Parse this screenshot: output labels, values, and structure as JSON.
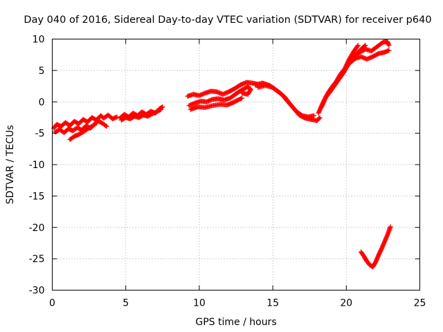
{
  "chart_data": {
    "type": "scatter",
    "title": "Day 040 of 2016, Sidereal Day-to-day VTEC variation (SDTVAR) for receiver p640",
    "xlabel": "GPS time / hours",
    "ylabel": "SDTVAR / TECUs",
    "xlim": [
      0,
      25
    ],
    "ylim": [
      -30,
      10
    ],
    "xticks": [
      0,
      5,
      10,
      15,
      20,
      25
    ],
    "yticks": [
      -30,
      -25,
      -20,
      -15,
      -10,
      -5,
      0,
      5,
      10
    ],
    "grid": true,
    "legend": "none",
    "marker": "plus",
    "color": "#ff0000",
    "series": [
      {
        "name": "sdtvar-p640",
        "segments": [
          [
            [
              0.1,
              -4.2
            ],
            [
              0.3,
              -3.6
            ],
            [
              0.6,
              -3.9
            ],
            [
              0.9,
              -3.3
            ],
            [
              1.2,
              -3.8
            ],
            [
              1.5,
              -3.1
            ],
            [
              1.8,
              -3.5
            ],
            [
              2.1,
              -2.8
            ],
            [
              2.4,
              -3.2
            ],
            [
              2.7,
              -2.5
            ],
            [
              3.0,
              -2.9
            ],
            [
              3.3,
              -2.2
            ],
            [
              3.5,
              -2.6
            ],
            [
              3.8,
              -2.1
            ],
            [
              4.1,
              -2.7
            ],
            [
              4.4,
              -2.4
            ]
          ],
          [
            [
              0.2,
              -4.8
            ],
            [
              0.5,
              -4.4
            ],
            [
              0.8,
              -4.9
            ],
            [
              1.1,
              -4.3
            ],
            [
              1.4,
              -4.6
            ],
            [
              1.7,
              -4.1
            ],
            [
              2.0,
              -4.5
            ],
            [
              2.3,
              -3.8
            ],
            [
              2.6,
              -4.2
            ],
            [
              2.9,
              -3.5
            ],
            [
              3.1,
              -3.0
            ],
            [
              3.4,
              -3.4
            ],
            [
              3.7,
              -3.9
            ]
          ],
          [
            [
              1.2,
              -6.0
            ],
            [
              1.5,
              -5.5
            ],
            [
              1.8,
              -5.2
            ],
            [
              2.1,
              -4.8
            ],
            [
              2.4,
              -4.3
            ],
            [
              2.7,
              -3.9
            ],
            [
              3.0,
              -3.4
            ]
          ],
          [
            [
              4.6,
              -2.6
            ],
            [
              4.9,
              -2.0
            ],
            [
              5.2,
              -2.4
            ],
            [
              5.5,
              -1.8
            ],
            [
              5.8,
              -2.2
            ],
            [
              6.1,
              -1.6
            ],
            [
              6.4,
              -2.0
            ],
            [
              6.7,
              -1.5
            ],
            [
              7.0,
              -1.8
            ],
            [
              7.3,
              -1.1
            ],
            [
              7.5,
              -0.8
            ]
          ],
          [
            [
              4.7,
              -2.9
            ],
            [
              5.0,
              -2.5
            ],
            [
              5.3,
              -2.7
            ],
            [
              5.6,
              -2.3
            ],
            [
              5.9,
              -2.5
            ],
            [
              6.2,
              -2.1
            ],
            [
              6.5,
              -2.3
            ],
            [
              6.8,
              -1.9
            ],
            [
              7.1,
              -1.6
            ],
            [
              7.4,
              -1.2
            ]
          ],
          [
            [
              9.2,
              0.9
            ],
            [
              9.6,
              1.2
            ],
            [
              10.0,
              1.0
            ],
            [
              10.4,
              1.4
            ],
            [
              10.8,
              1.7
            ],
            [
              11.2,
              1.6
            ],
            [
              11.6,
              1.2
            ],
            [
              12.0,
              1.6
            ],
            [
              12.4,
              2.1
            ],
            [
              12.8,
              2.7
            ],
            [
              13.2,
              3.1
            ],
            [
              13.6,
              3.0
            ],
            [
              14.0,
              2.8
            ]
          ],
          [
            [
              9.3,
              -0.6
            ],
            [
              9.7,
              -0.2
            ],
            [
              10.1,
              0.1
            ],
            [
              10.5,
              0.0
            ],
            [
              10.9,
              0.4
            ],
            [
              11.3,
              0.5
            ],
            [
              11.7,
              0.3
            ],
            [
              12.1,
              0.6
            ],
            [
              12.5,
              1.3
            ],
            [
              12.9,
              1.9
            ],
            [
              13.3,
              2.4
            ],
            [
              13.5,
              2.0
            ],
            [
              13.3,
              1.2
            ],
            [
              12.9,
              1.4
            ]
          ],
          [
            [
              9.4,
              -1.2
            ],
            [
              9.9,
              -0.8
            ],
            [
              10.4,
              -0.9
            ],
            [
              10.9,
              -0.6
            ],
            [
              11.4,
              -0.4
            ],
            [
              11.9,
              -0.5
            ],
            [
              12.4,
              0.0
            ],
            [
              12.9,
              0.6
            ]
          ],
          [
            [
              13.8,
              2.7
            ],
            [
              14.3,
              3.0
            ],
            [
              14.8,
              2.6
            ],
            [
              15.2,
              1.9
            ],
            [
              15.6,
              1.2
            ],
            [
              16.0,
              0.1
            ],
            [
              16.4,
              -1.0
            ],
            [
              16.8,
              -2.1
            ],
            [
              17.2,
              -2.6
            ],
            [
              17.6,
              -2.8
            ],
            [
              18.0,
              -3.0
            ],
            [
              18.2,
              -2.5
            ]
          ],
          [
            [
              14.0,
              2.3
            ],
            [
              14.5,
              2.6
            ],
            [
              15.0,
              2.3
            ],
            [
              15.4,
              1.6
            ],
            [
              15.8,
              0.8
            ],
            [
              16.2,
              -0.4
            ],
            [
              16.6,
              -1.5
            ],
            [
              17.0,
              -2.2
            ],
            [
              17.4,
              -2.4
            ],
            [
              17.8,
              -2.2
            ]
          ],
          [
            [
              18.1,
              -1.8
            ],
            [
              18.4,
              -0.2
            ],
            [
              18.7,
              1.2
            ],
            [
              19.0,
              2.3
            ],
            [
              19.3,
              3.2
            ],
            [
              19.6,
              4.4
            ],
            [
              19.9,
              5.3
            ],
            [
              20.2,
              6.8
            ],
            [
              20.5,
              8.0
            ],
            [
              20.8,
              9.0
            ]
          ],
          [
            [
              18.3,
              -0.9
            ],
            [
              18.6,
              0.7
            ],
            [
              18.9,
              1.6
            ],
            [
              19.2,
              2.6
            ],
            [
              19.5,
              3.6
            ],
            [
              19.8,
              4.6
            ],
            [
              20.1,
              5.8
            ],
            [
              20.4,
              6.9
            ],
            [
              20.7,
              7.6
            ],
            [
              21.0,
              8.4
            ],
            [
              21.3,
              9.0
            ]
          ],
          [
            [
              20.2,
              6.1
            ],
            [
              20.6,
              6.9
            ],
            [
              21.0,
              7.2
            ],
            [
              21.4,
              6.8
            ],
            [
              21.8,
              7.2
            ],
            [
              22.2,
              7.7
            ],
            [
              22.6,
              7.9
            ],
            [
              22.9,
              8.2
            ]
          ],
          [
            [
              20.5,
              7.4
            ],
            [
              20.9,
              7.9
            ],
            [
              21.3,
              8.4
            ],
            [
              21.7,
              8.1
            ],
            [
              22.1,
              8.8
            ],
            [
              22.5,
              9.5
            ],
            [
              22.8,
              9.6
            ],
            [
              22.9,
              9.0
            ]
          ],
          [
            [
              21.0,
              -23.9
            ],
            [
              21.2,
              -24.6
            ],
            [
              21.4,
              -25.4
            ],
            [
              21.6,
              -26.0
            ],
            [
              21.8,
              -26.3
            ],
            [
              22.0,
              -25.5
            ],
            [
              22.2,
              -24.4
            ],
            [
              22.4,
              -23.4
            ],
            [
              22.6,
              -22.3
            ],
            [
              22.8,
              -21.2
            ],
            [
              23.0,
              -19.9
            ]
          ]
        ]
      }
    ]
  }
}
